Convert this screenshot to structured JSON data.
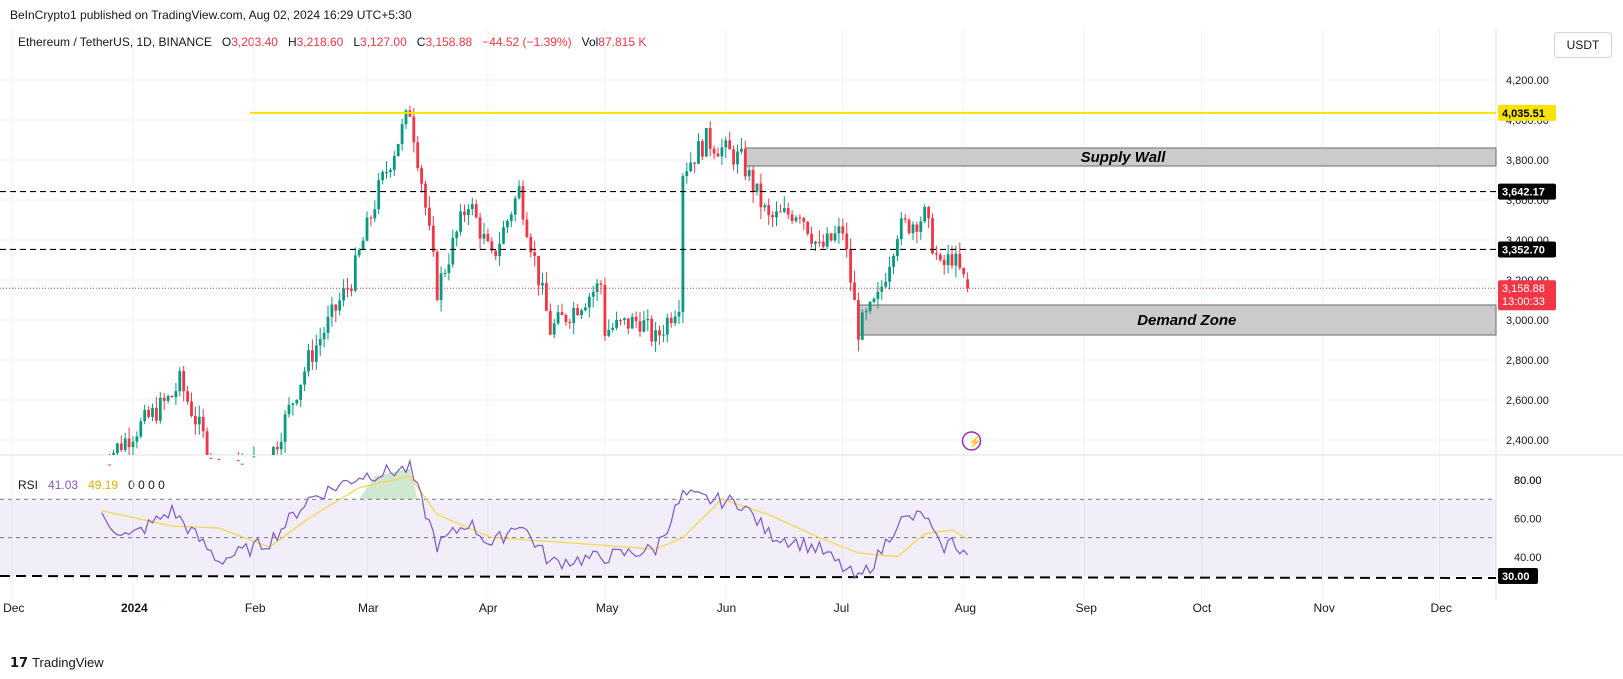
{
  "header": {
    "publisher": "BeInCrypto1 published on TradingView.com, Aug 02, 2024 16:29 UTC+5:30",
    "symbol": "Ethereum / TetherUS, 1D, BINANCE",
    "o_label": "O",
    "o_value": "3,203.40",
    "h_label": "H",
    "h_value": "3,218.60",
    "l_label": "L",
    "l_value": "3,127.00",
    "c_label": "C",
    "c_value": "3,158.88",
    "change": "−44.52 (−1.39%)",
    "vol_label": "Vol",
    "vol_value": "87.815 K",
    "currency": "USDT"
  },
  "rsi_legend": {
    "label": "RSI",
    "rsi": "41.03",
    "ma": "49.19",
    "extras": "0 0 0 0"
  },
  "footer": {
    "brand": "TradingView"
  },
  "colors": {
    "up": "#089981",
    "down": "#f23645",
    "resistance": "#f7e200",
    "rsi_line": "#7e57c2",
    "rsi_ma": "#f5d752",
    "zone": "#c8c8c8",
    "event": "#9c27b0"
  },
  "chart_data": [
    {
      "type": "candlestick",
      "title": "Ethereum / TetherUS, 1D, BINANCE",
      "y_axis": {
        "ticks": [
          "2,400.00",
          "2,600.00",
          "2,800.00",
          "3,000.00",
          "3,200.00",
          "3,400.00",
          "3,600.00",
          "3,800.00",
          "4,000.00",
          "4,200.00"
        ],
        "range": [
          2330,
          4350
        ]
      },
      "x_axis": {
        "ticks": [
          "Dec",
          "2024",
          "Feb",
          "Mar",
          "Apr",
          "May",
          "Jun",
          "Jul",
          "Aug",
          "Sep",
          "Oct",
          "Nov",
          "Dec"
        ]
      },
      "horizontal_levels": [
        {
          "value": 4035.51,
          "label": "4,035.51",
          "style": "solid",
          "color": "#f7e200"
        },
        {
          "value": 3642.17,
          "label": "3,642.17",
          "style": "dashed",
          "color": "#000000"
        },
        {
          "value": 3352.7,
          "label": "3,352.70",
          "style": "dashed",
          "color": "#000000"
        }
      ],
      "zones": [
        {
          "name": "Supply Wall",
          "low": 3770,
          "high": 3860,
          "from": "2024-06-06",
          "to": "2024-12-31"
        },
        {
          "name": "Demand Zone",
          "low": 2925,
          "high": 3075,
          "from": "2024-07-05",
          "to": "2024-12-31"
        }
      ],
      "last_price": {
        "value": 3158.88,
        "label": "3,158.88",
        "countdown": "13:00:33"
      },
      "ohlc_anchors": [
        {
          "x": "2023-12-24",
          "close": 2290
        },
        {
          "x": "2024-01-11",
          "close": 2620
        },
        {
          "x": "2024-01-13",
          "close": 2690
        },
        {
          "x": "2024-01-23",
          "close": 2230
        },
        {
          "x": "2024-02-05",
          "close": 2300
        },
        {
          "x": "2024-02-15",
          "close": 2800
        },
        {
          "x": "2024-02-26",
          "close": 3200
        },
        {
          "x": "2024-03-04",
          "close": 3650
        },
        {
          "x": "2024-03-12",
          "close": 4050
        },
        {
          "x": "2024-03-15",
          "close": 3700
        },
        {
          "x": "2024-03-19",
          "close": 3150
        },
        {
          "x": "2024-03-27",
          "close": 3600
        },
        {
          "x": "2024-04-02",
          "close": 3300
        },
        {
          "x": "2024-04-09",
          "close": 3650
        },
        {
          "x": "2024-04-17",
          "close": 2950
        },
        {
          "x": "2024-04-30",
          "close": 3180
        },
        {
          "x": "2024-05-01",
          "close": 2950
        },
        {
          "x": "2024-05-10",
          "close": 3000
        },
        {
          "x": "2024-05-14",
          "close": 2900
        },
        {
          "x": "2024-05-20",
          "close": 3100
        },
        {
          "x": "2024-05-21",
          "close": 3750
        },
        {
          "x": "2024-05-27",
          "close": 3900
        },
        {
          "x": "2024-06-05",
          "close": 3800
        },
        {
          "x": "2024-06-12",
          "close": 3500
        },
        {
          "x": "2024-06-20",
          "close": 3550
        },
        {
          "x": "2024-06-25",
          "close": 3350
        },
        {
          "x": "2024-07-01",
          "close": 3450
        },
        {
          "x": "2024-07-05",
          "close": 2950
        },
        {
          "x": "2024-07-10",
          "close": 3100
        },
        {
          "x": "2024-07-15",
          "close": 3450
        },
        {
          "x": "2024-07-22",
          "close": 3520
        },
        {
          "x": "2024-07-26",
          "close": 3250
        },
        {
          "x": "2024-07-29",
          "close": 3320
        },
        {
          "x": "2024-08-02",
          "close": 3158.88
        }
      ]
    },
    {
      "type": "line",
      "title": "RSI",
      "y_axis": {
        "ticks": [
          "40.00",
          "60.00",
          "80.00"
        ],
        "range": [
          18,
          90
        ]
      },
      "levels": [
        {
          "value": 30,
          "label": "30.00"
        }
      ],
      "band": [
        30,
        70
      ],
      "series": [
        {
          "name": "RSI",
          "anchors": [
            {
              "x": "2023-12-24",
              "v": 60
            },
            {
              "x": "2023-12-31",
              "v": 50
            },
            {
              "x": "2024-01-11",
              "v": 64
            },
            {
              "x": "2024-01-23",
              "v": 38
            },
            {
              "x": "2024-02-05",
              "v": 48
            },
            {
              "x": "2024-02-15",
              "v": 70
            },
            {
              "x": "2024-02-28",
              "v": 82
            },
            {
              "x": "2024-03-12",
              "v": 86
            },
            {
              "x": "2024-03-19",
              "v": 46
            },
            {
              "x": "2024-03-27",
              "v": 58
            },
            {
              "x": "2024-04-02",
              "v": 46
            },
            {
              "x": "2024-04-09",
              "v": 58
            },
            {
              "x": "2024-04-17",
              "v": 37
            },
            {
              "x": "2024-05-01",
              "v": 40
            },
            {
              "x": "2024-05-14",
              "v": 44
            },
            {
              "x": "2024-05-21",
              "v": 72
            },
            {
              "x": "2024-05-27",
              "v": 70
            },
            {
              "x": "2024-06-05",
              "v": 68
            },
            {
              "x": "2024-06-12",
              "v": 52
            },
            {
              "x": "2024-06-25",
              "v": 44
            },
            {
              "x": "2024-07-05",
              "v": 28
            },
            {
              "x": "2024-07-10",
              "v": 40
            },
            {
              "x": "2024-07-15",
              "v": 58
            },
            {
              "x": "2024-07-22",
              "v": 62
            },
            {
              "x": "2024-07-26",
              "v": 44
            },
            {
              "x": "2024-07-29",
              "v": 48
            },
            {
              "x": "2024-08-02",
              "v": 41.03
            }
          ]
        },
        {
          "name": "RSI MA",
          "anchors": [
            {
              "x": "2023-12-24",
              "v": 64
            },
            {
              "x": "2024-01-11",
              "v": 56
            },
            {
              "x": "2024-01-23",
              "v": 55
            },
            {
              "x": "2024-02-05",
              "v": 45
            },
            {
              "x": "2024-02-15",
              "v": 60
            },
            {
              "x": "2024-02-28",
              "v": 76
            },
            {
              "x": "2024-03-12",
              "v": 82
            },
            {
              "x": "2024-03-19",
              "v": 62
            },
            {
              "x": "2024-04-02",
              "v": 50
            },
            {
              "x": "2024-04-17",
              "v": 48
            },
            {
              "x": "2024-05-14",
              "v": 44
            },
            {
              "x": "2024-05-21",
              "v": 50
            },
            {
              "x": "2024-05-31",
              "v": 70
            },
            {
              "x": "2024-06-12",
              "v": 62
            },
            {
              "x": "2024-06-25",
              "v": 50
            },
            {
              "x": "2024-07-05",
              "v": 42
            },
            {
              "x": "2024-07-15",
              "v": 40
            },
            {
              "x": "2024-07-22",
              "v": 52
            },
            {
              "x": "2024-07-29",
              "v": 54
            },
            {
              "x": "2024-08-02",
              "v": 49.19
            }
          ]
        }
      ]
    }
  ]
}
